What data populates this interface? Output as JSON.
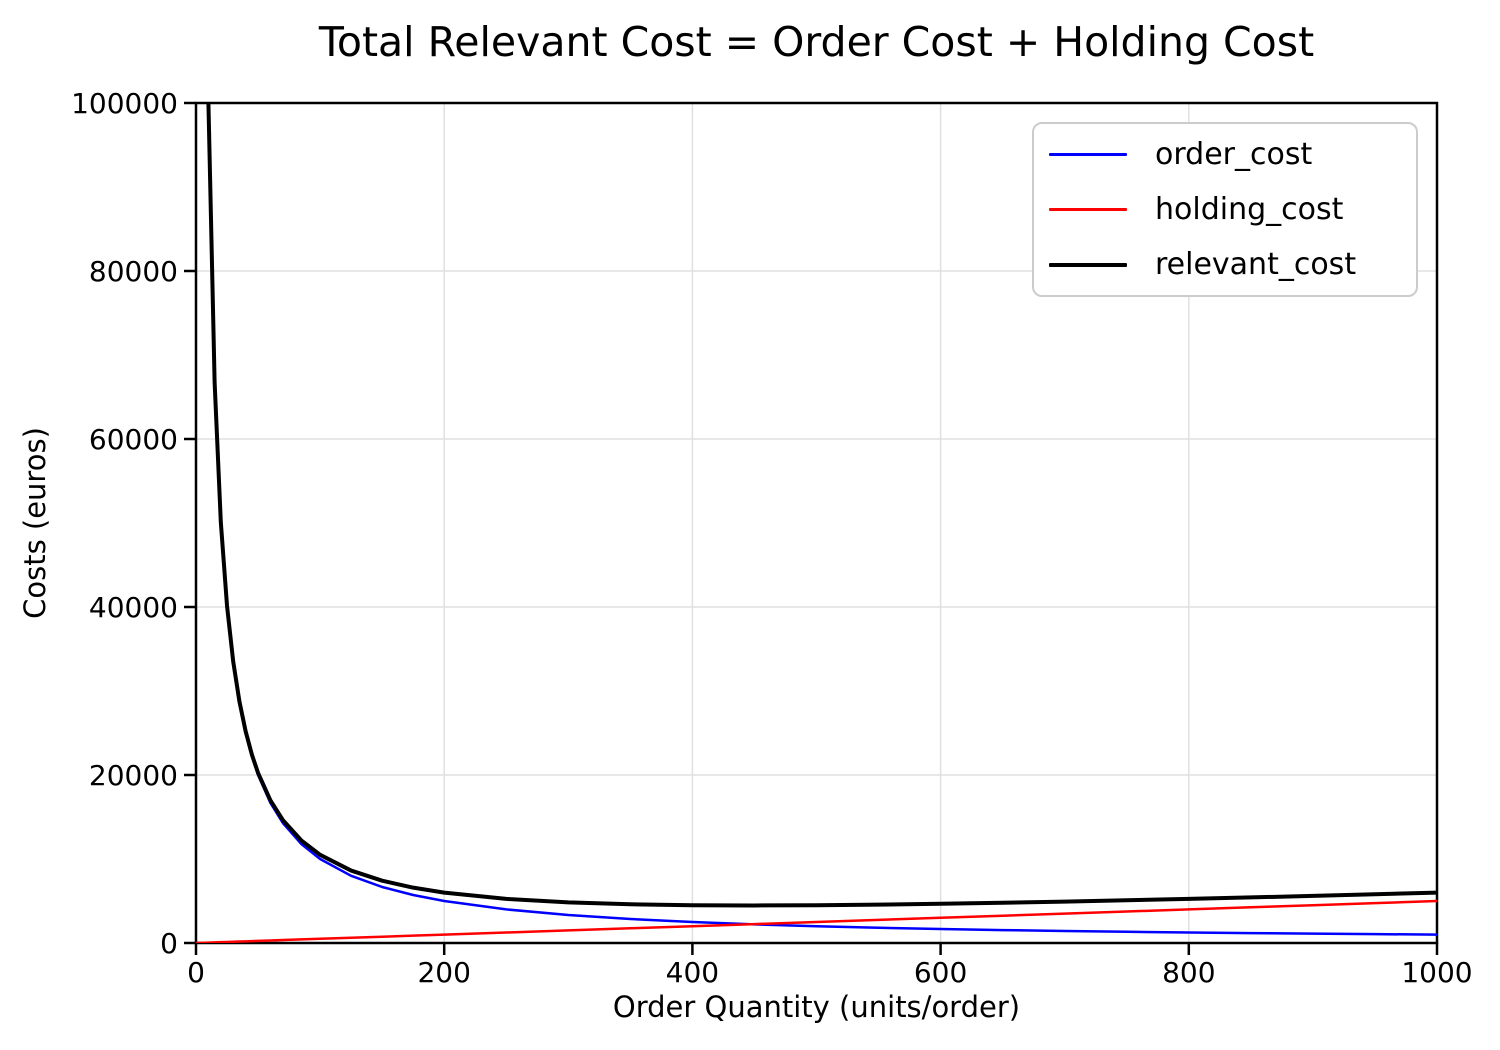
{
  "chart_data": {
    "type": "line",
    "title": "Total Relevant Cost = Order Cost + Holding Cost",
    "xlabel": "Order Quantity (units/order)",
    "ylabel": "Costs (euros)",
    "xlim": [
      0,
      1000
    ],
    "ylim": [
      0,
      100000
    ],
    "xticks": [
      0,
      200,
      400,
      600,
      800,
      1000
    ],
    "yticks": [
      0,
      20000,
      40000,
      60000,
      80000,
      100000
    ],
    "grid": true,
    "grid_color": "#e0e0e0",
    "axis_color": "#000000",
    "legend": {
      "location": "upper right",
      "entries": [
        "order_cost",
        "holding_cost",
        "relevant_cost"
      ]
    },
    "x": [
      0,
      10,
      15,
      20,
      25,
      30,
      35,
      40,
      45,
      50,
      60,
      70,
      85,
      100,
      125,
      150,
      175,
      200,
      250,
      300,
      350,
      400,
      450,
      500,
      550,
      600,
      650,
      700,
      750,
      800,
      850,
      900,
      950,
      1000
    ],
    "series": [
      {
        "name": "order_cost",
        "color": "#0000ff",
        "linewidth": 2.5,
        "values": [
          null,
          100000,
          66667,
          50000,
          40000,
          33333,
          28571,
          25000,
          22222,
          20000,
          16667,
          14286,
          11765,
          10000,
          8000,
          6667,
          5714,
          5000,
          4000,
          3333,
          2857,
          2500,
          2222,
          2000,
          1818,
          1667,
          1538,
          1429,
          1333,
          1250,
          1176,
          1111,
          1053,
          1000
        ]
      },
      {
        "name": "holding_cost",
        "color": "#ff0000",
        "linewidth": 2.5,
        "values": [
          0,
          50,
          75,
          100,
          125,
          150,
          175,
          200,
          225,
          250,
          300,
          350,
          425,
          500,
          625,
          750,
          875,
          1000,
          1250,
          1500,
          1750,
          2000,
          2250,
          2500,
          2750,
          3000,
          3250,
          3500,
          3750,
          4000,
          4250,
          4500,
          4750,
          5000
        ]
      },
      {
        "name": "relevant_cost",
        "color": "#000000",
        "linewidth": 4,
        "values": [
          null,
          100050,
          66742,
          50100,
          40125,
          33483,
          28746,
          25200,
          22447,
          20250,
          16967,
          14636,
          12190,
          10500,
          8625,
          7417,
          6589,
          6000,
          5250,
          4833,
          4607,
          4500,
          4472,
          4500,
          4568,
          4667,
          4788,
          4929,
          5083,
          5250,
          5426,
          5611,
          5803,
          6000
        ]
      }
    ]
  }
}
